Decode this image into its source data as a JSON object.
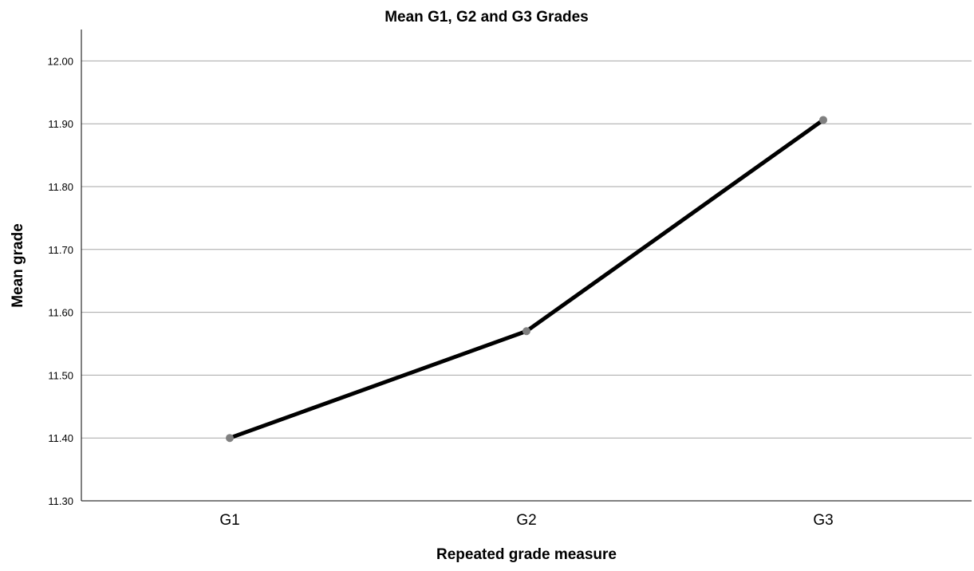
{
  "chart_data": {
    "type": "line",
    "title": "Mean G1, G2 and G3 Grades",
    "xlabel": "Repeated grade measure",
    "ylabel": "Mean grade",
    "categories": [
      "G1",
      "G2",
      "G3"
    ],
    "series": [
      {
        "values": [
          11.4,
          11.57,
          11.906
        ]
      }
    ],
    "ylim": [
      11.3,
      12.05
    ],
    "yticks": [
      "11.30",
      "11.40",
      "11.50",
      "11.60",
      "11.70",
      "11.80",
      "11.90",
      "12.00"
    ],
    "grid": true,
    "legend": "none",
    "colors": {
      "line": "#000000",
      "marker": "#808080",
      "grid": "#a6a6a6",
      "axis": "#000000"
    }
  }
}
